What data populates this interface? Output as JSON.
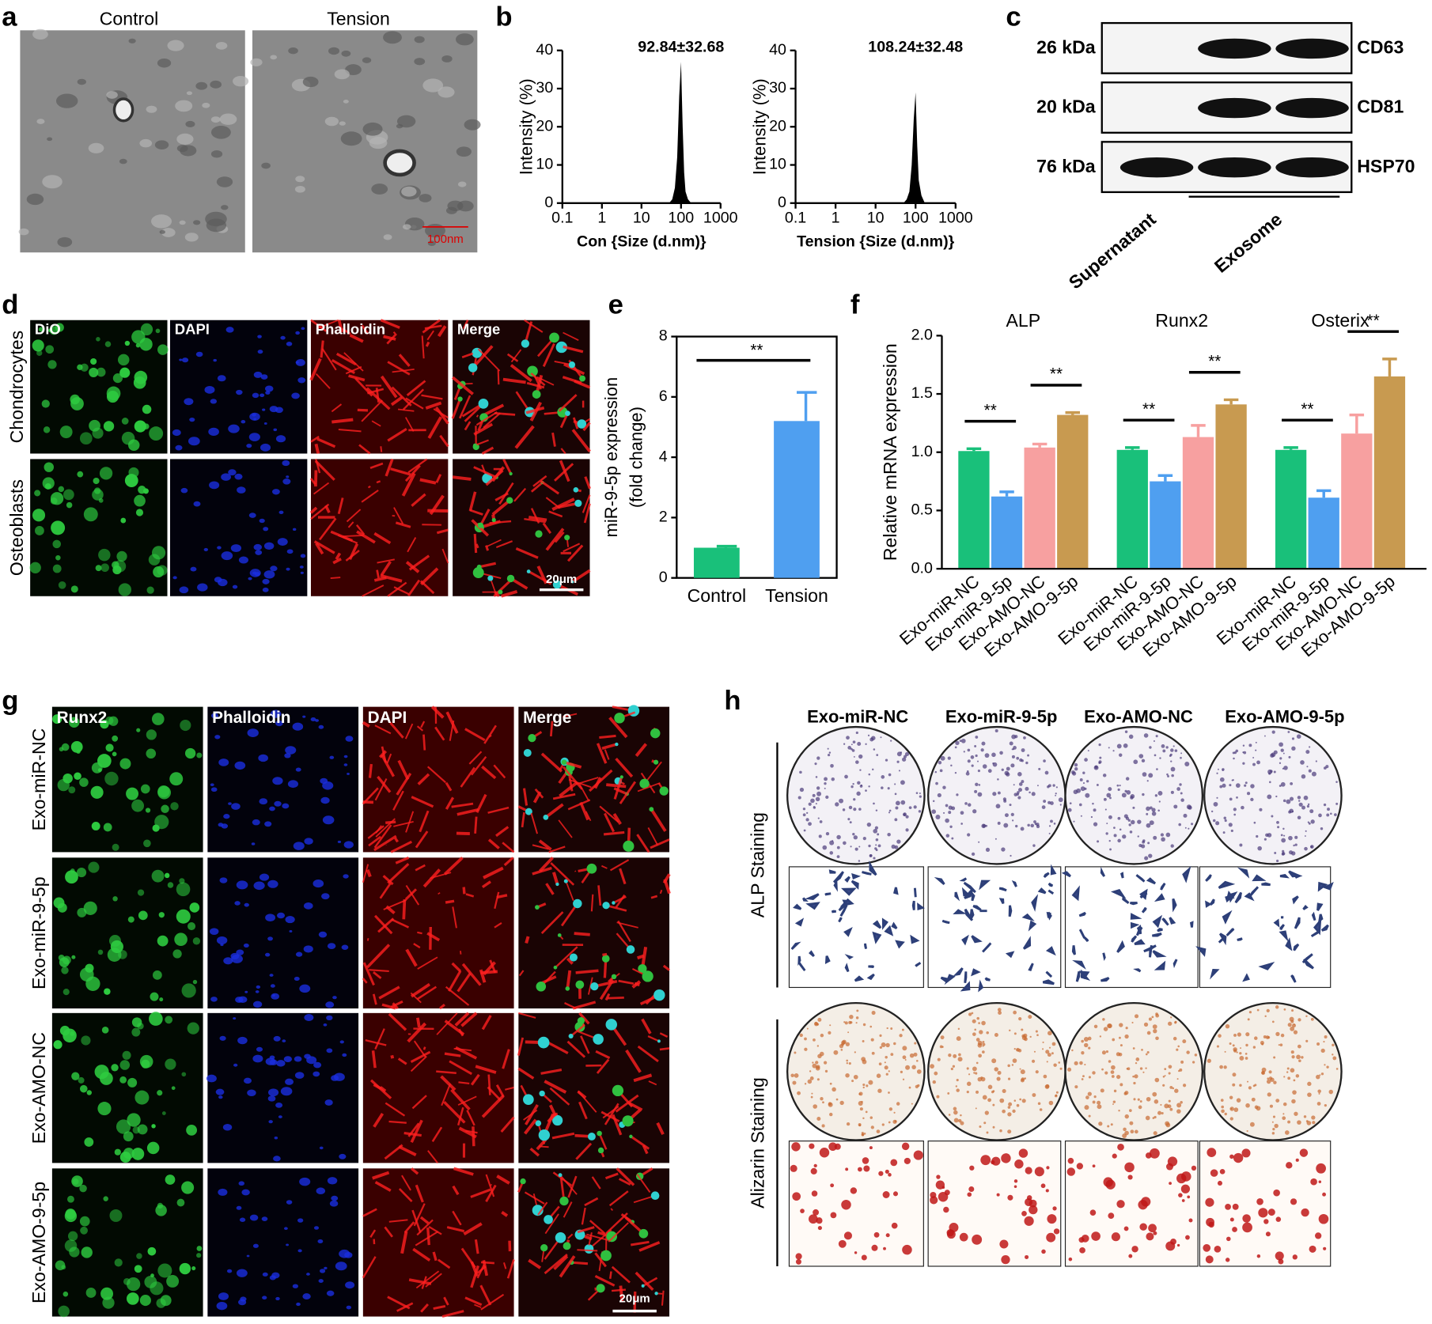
{
  "panel_letters": [
    "a",
    "b",
    "c",
    "d",
    "e",
    "f",
    "g",
    "h"
  ],
  "a": {
    "labels": [
      "Control",
      "Tension"
    ],
    "scale_bar": "100nm"
  },
  "c": {
    "kda": [
      "26 kDa",
      "20 kDa",
      "76 kDa"
    ],
    "proteins": [
      "CD63",
      "CD81",
      "HSP70"
    ],
    "lanes": [
      "Supernatant",
      "Exosome"
    ]
  },
  "d": {
    "channels": [
      "DiO",
      "DAPI",
      "Phalloidin",
      "Merge"
    ],
    "rows": [
      "Chondrocytes",
      "Osteoblasts"
    ],
    "scale_bar": "20μm"
  },
  "g": {
    "channels": [
      "Runx2",
      "Phalloidin",
      "DAPI",
      "Merge"
    ],
    "rows": [
      "Exo-miR-NC",
      "Exo-miR-9-5p",
      "Exo-AMO-NC",
      "Exo-AMO-9-5p"
    ],
    "scale_bar": "20μm"
  },
  "h": {
    "columns": [
      "Exo-miR-NC",
      "Exo-miR-9-5p",
      "Exo-AMO-NC",
      "Exo-AMO-9-5p"
    ],
    "rows": [
      "ALP Staining",
      "Alizarin Staining"
    ]
  },
  "chart_data": [
    {
      "type": "area",
      "annotation": "92.84±32.68",
      "xlabel": "Con {Size (d.nm)}",
      "ylabel": "Intensity (%)",
      "log_x": true,
      "color": "#000000",
      "x": [
        50,
        60,
        70,
        80,
        90,
        100,
        110,
        120,
        130,
        150,
        180
      ],
      "values": [
        0,
        1,
        4,
        12,
        28,
        37,
        20,
        8,
        3,
        1,
        0
      ],
      "xlim": [
        0.1,
        1000
      ],
      "xticks": [
        0.1,
        1,
        10,
        100,
        1000
      ],
      "ylim": [
        0,
        40
      ],
      "yticks": [
        0,
        10,
        20,
        30,
        40
      ]
    },
    {
      "type": "area",
      "annotation": "108.24±32.48",
      "xlabel": "Tension {Size (d.nm)}",
      "ylabel": "Intensity (%)",
      "log_x": true,
      "color": "#000000",
      "x": [
        50,
        60,
        70,
        80,
        90,
        100,
        110,
        120,
        140,
        170
      ],
      "values": [
        0,
        1,
        3,
        10,
        22,
        29,
        15,
        6,
        2,
        0
      ],
      "xlim": [
        0.1,
        1000
      ],
      "xticks": [
        0.1,
        1,
        10,
        100,
        1000
      ],
      "ylim": [
        0,
        40
      ],
      "yticks": [
        0,
        10,
        20,
        30,
        40
      ]
    },
    {
      "type": "bar",
      "ylabel": [
        "miR-9-5p expression",
        "(fold change)"
      ],
      "categories": [
        "Control",
        "Tension"
      ],
      "values": [
        1,
        5.2
      ],
      "errors": [
        0.05,
        0.95
      ],
      "colors": [
        "#19c07a",
        "#4f9ff0"
      ],
      "significance": "**",
      "ylim": [
        0,
        8
      ],
      "yticks": [
        0,
        2,
        4,
        6,
        8
      ]
    },
    {
      "type": "grouped_bar",
      "ylabel": "Relative mRNA expression",
      "groups": [
        "ALP",
        "Runx2",
        "Osterix"
      ],
      "series": [
        {
          "name": "Exo-miR-NC",
          "color": "#19c07a",
          "values": [
            1.01,
            1.02,
            1.02
          ],
          "errors": [
            0.02,
            0.02,
            0.02
          ]
        },
        {
          "name": "Exo-miR-9-5p",
          "color": "#4f9ff0",
          "values": [
            0.62,
            0.75,
            0.61
          ],
          "errors": [
            0.04,
            0.05,
            0.06
          ]
        },
        {
          "name": "Exo-AMO-NC",
          "color": "#f7a0a0",
          "values": [
            1.04,
            1.13,
            1.16
          ],
          "errors": [
            0.03,
            0.1,
            0.16
          ]
        },
        {
          "name": "Exo-AMO-9-5p",
          "color": "#c89a50",
          "values": [
            1.32,
            1.41,
            1.65
          ],
          "errors": [
            0.02,
            0.04,
            0.15
          ]
        }
      ],
      "significance": "**",
      "ylim": [
        0,
        2
      ],
      "yticks": [
        {
          "value": 0,
          "label": "0.0"
        },
        {
          "value": 0.5,
          "label": "0.5"
        },
        {
          "value": 1,
          "label": "1.0"
        },
        {
          "value": 1.5,
          "label": "1.5"
        },
        {
          "value": 2,
          "label": "2.0"
        }
      ]
    }
  ]
}
